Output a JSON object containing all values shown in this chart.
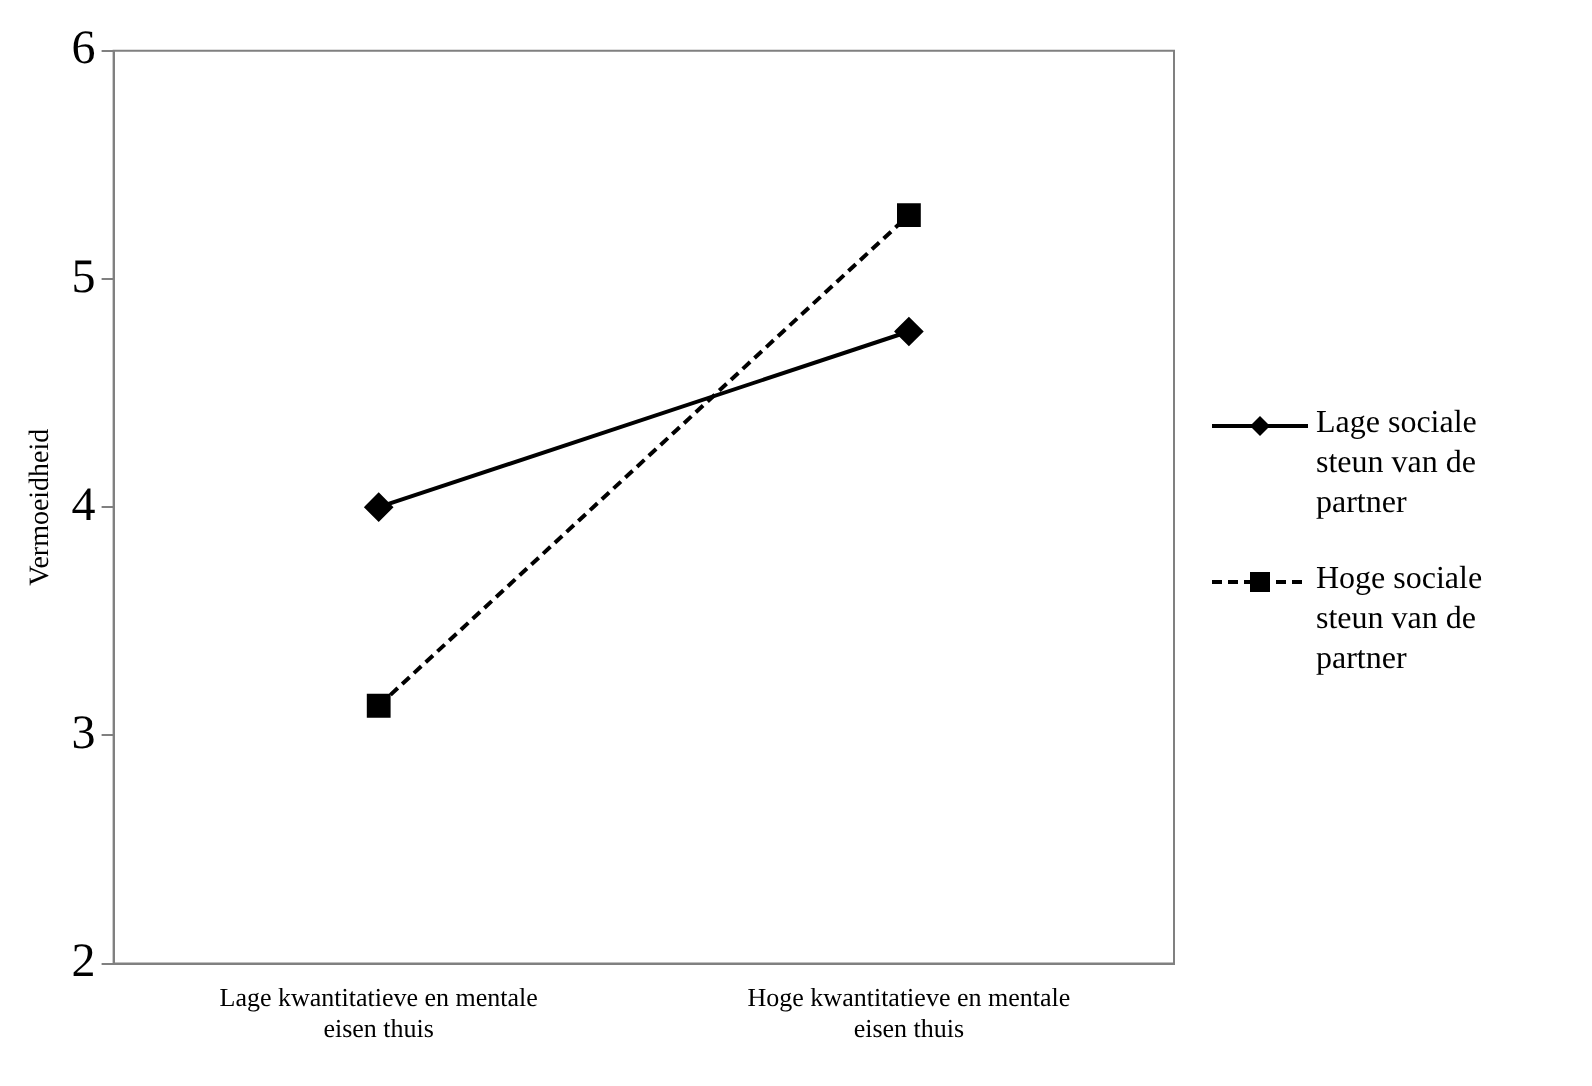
{
  "chart_data": {
    "type": "line",
    "ylabel": "Vermoeidheid",
    "categories": [
      "Lage kwantitatieve en mentale eisen thuis",
      "Hoge kwantitatieve en mentale eisen thuis"
    ],
    "series": [
      {
        "name": "Lage sociale steun van de partner",
        "color": "#000000",
        "values": [
          4.0,
          4.77
        ],
        "marker": "diamond",
        "line_style": "solid"
      },
      {
        "name": "Hoge sociale steun van de partner",
        "color": "#000000",
        "values": [
          3.13,
          5.28
        ],
        "marker": "square",
        "line_style": "dashed"
      }
    ],
    "ylim": [
      2,
      6
    ],
    "yticks": [
      2,
      3,
      4,
      5,
      6
    ],
    "grid": false,
    "legend": "right"
  }
}
